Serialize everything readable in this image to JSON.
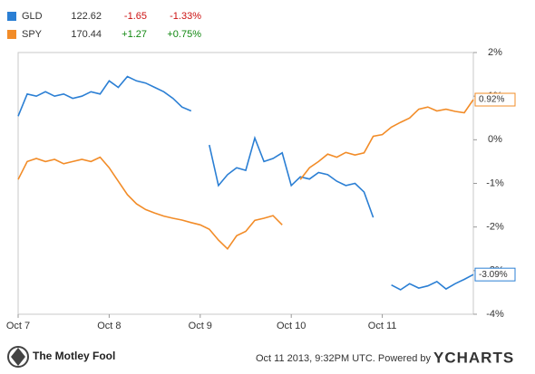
{
  "chart_data": {
    "type": "line",
    "categories": [
      "Oct 7",
      null,
      null,
      null,
      null,
      null,
      null,
      null,
      null,
      null,
      "Oct 8",
      null,
      null,
      null,
      null,
      null,
      null,
      null,
      null,
      null,
      "Oct 9",
      null,
      null,
      null,
      null,
      null,
      null,
      null,
      null,
      null,
      "Oct 10",
      null,
      null,
      null,
      null,
      null,
      null,
      null,
      null,
      null,
      "Oct 11",
      null,
      null,
      null,
      null,
      null,
      null,
      null,
      null,
      null,
      null
    ],
    "series": [
      {
        "name": "GLD",
        "color": "#2b7fd4",
        "price": 122.62,
        "change": -1.65,
        "change_pct": {
          "value": -1.33,
          "label": "-1.33%"
        },
        "end_label": "-3.09%",
        "values": [
          0.54,
          1.05,
          1.0,
          1.1,
          1.0,
          1.05,
          0.95,
          1.0,
          1.1,
          1.05,
          1.35,
          1.2,
          1.45,
          1.35,
          1.3,
          1.2,
          1.1,
          0.95,
          0.75,
          0.66,
          null,
          -0.12,
          -1.05,
          -0.8,
          -0.64,
          -0.7,
          0.04,
          -0.5,
          -0.43,
          -0.3,
          -1.05,
          -0.85,
          -0.9,
          -0.75,
          -0.8,
          -0.95,
          -1.05,
          -1.0,
          -1.2,
          -1.78,
          null,
          -3.33,
          -3.44,
          -3.3,
          -3.4,
          -3.35,
          -3.25,
          -3.42,
          -3.3,
          -3.2,
          -3.09
        ]
      },
      {
        "name": "SPY",
        "color": "#f28c28",
        "price": 170.44,
        "change": {
          "value": 1.27,
          "label": "+1.27"
        },
        "change_pct": {
          "value": 0.75,
          "label": "+0.75%"
        },
        "end_label": "0.92%",
        "values": [
          -0.91,
          -0.5,
          -0.43,
          -0.5,
          -0.45,
          -0.55,
          -0.5,
          -0.45,
          -0.5,
          -0.4,
          -0.64,
          -0.95,
          -1.26,
          -1.47,
          -1.6,
          -1.68,
          -1.75,
          -1.8,
          -1.84,
          -1.9,
          -1.95,
          -2.05,
          -2.3,
          -2.5,
          -2.2,
          -2.1,
          -1.85,
          -1.8,
          -1.74,
          -1.95,
          null,
          -0.91,
          -0.64,
          -0.5,
          -0.33,
          -0.4,
          -0.29,
          -0.35,
          -0.3,
          0.08,
          0.12,
          0.29,
          0.4,
          0.5,
          0.7,
          0.75,
          0.66,
          0.7,
          0.65,
          0.62,
          0.92
        ]
      }
    ],
    "ylim": [
      -4,
      2
    ],
    "yticks": [
      {
        "value": 2,
        "label": "2%"
      },
      {
        "value": 1,
        "label": "1%"
      },
      {
        "value": 0,
        "label": "0%"
      },
      {
        "value": -1,
        "label": "-1%"
      },
      {
        "value": -2,
        "label": "-2%"
      },
      {
        "value": -3,
        "label": "-3%"
      },
      {
        "value": -4,
        "label": "-4%"
      }
    ],
    "source_logo": "The Motley Fool",
    "footnote": "Oct 11 2013, 9:32PM UTC. Powered by",
    "credit": "YCHARTS"
  }
}
